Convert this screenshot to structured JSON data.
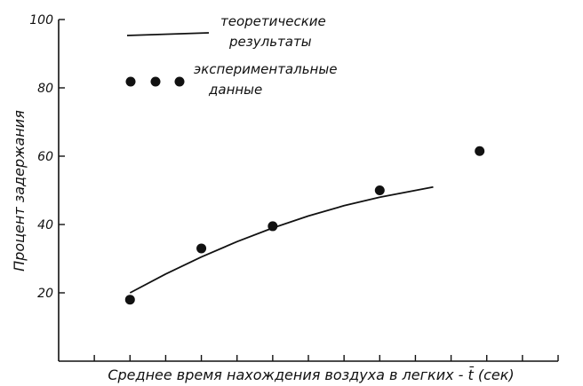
{
  "chart_data": {
    "type": "scatter",
    "title": "",
    "xlabel": "Среднее время нахождения воздуха в легких - t̄ (сек)",
    "ylabel": "Процент задержания",
    "xlim": [
      0,
      14
    ],
    "ylim": [
      0,
      100
    ],
    "x_ticks_labeled": false,
    "y_ticks": [
      20,
      40,
      60,
      80,
      100
    ],
    "grid": false,
    "legend_position": "top-center",
    "legend": {
      "line_label_1": "теоретические",
      "line_label_2": "результаты",
      "points_label_1": "экспериментальные",
      "points_label_2": "данные"
    },
    "series": [
      {
        "kind": "line",
        "x": [
          2.0,
          3.0,
          4.0,
          5.0,
          6.0,
          7.0,
          8.0,
          9.0,
          10.5
        ],
        "y": [
          20,
          25.5,
          30.5,
          35,
          39,
          42.5,
          45.5,
          48,
          51
        ]
      },
      {
        "kind": "points",
        "x": [
          2.0,
          4.0,
          6.0,
          9.0,
          11.8
        ],
        "y": [
          18,
          33,
          39.5,
          50,
          61.5
        ]
      }
    ]
  }
}
